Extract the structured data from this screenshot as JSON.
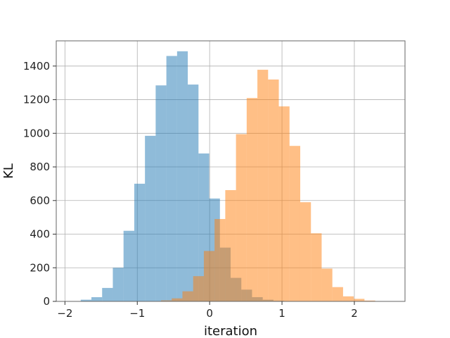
{
  "chart_data": {
    "type": "histogram",
    "title": "",
    "xlabel": "iteration",
    "ylabel": "KL",
    "xlim": [
      -2.12,
      2.7
    ],
    "ylim": [
      0,
      1550
    ],
    "xticks": [
      -2,
      -1,
      0,
      1,
      2
    ],
    "xtick_labels": [
      "−2",
      "−1",
      "0",
      "1",
      "2"
    ],
    "yticks": [
      0,
      200,
      400,
      600,
      800,
      1000,
      1200,
      1400
    ],
    "ytick_labels": [
      "0",
      "200",
      "400",
      "600",
      "800",
      "1000",
      "1200",
      "1400"
    ],
    "grid": true,
    "series": [
      {
        "color": "#1f77b4",
        "alpha": 0.5,
        "bin_start": -1.93,
        "bin_width": 0.148,
        "counts": [
          2,
          10,
          25,
          80,
          200,
          420,
          700,
          985,
          1285,
          1460,
          1488,
          1290,
          880,
          612,
          320,
          140,
          70,
          25,
          10,
          4
        ]
      },
      {
        "color": "#ff7f0e",
        "alpha": 0.5,
        "bin_start": -0.82,
        "bin_width": 0.148,
        "counts": [
          2,
          6,
          18,
          60,
          150,
          300,
          490,
          662,
          995,
          1210,
          1378,
          1320,
          1160,
          925,
          590,
          405,
          195,
          85,
          30,
          15,
          5
        ]
      }
    ]
  }
}
